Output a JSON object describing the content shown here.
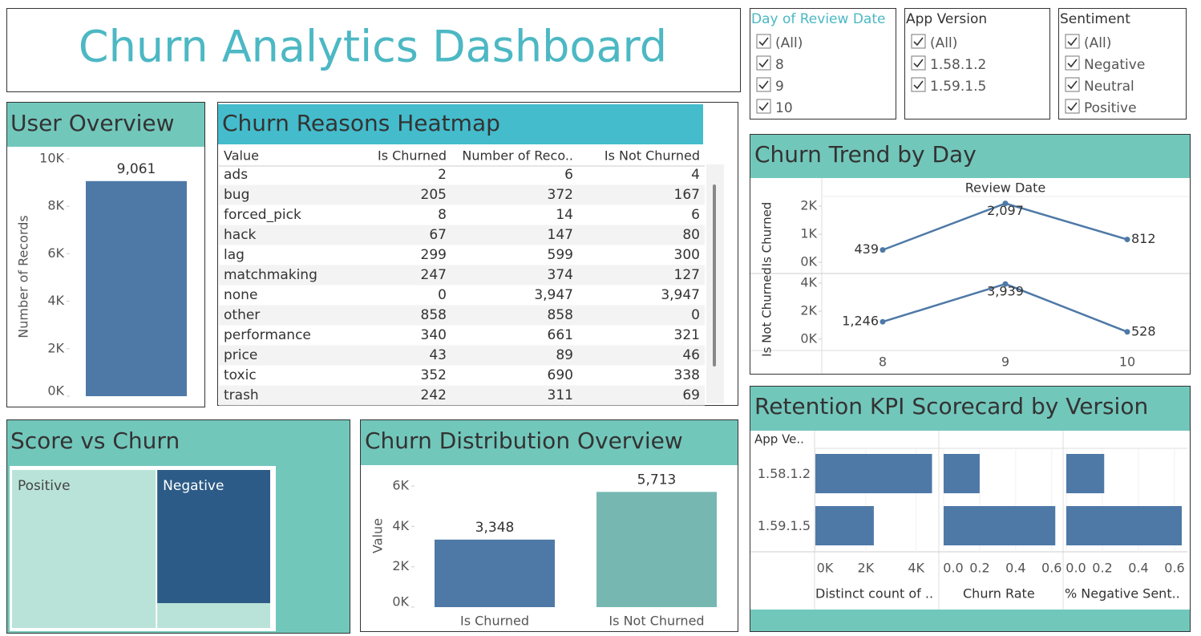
{
  "title": "Churn Analytics Dashboard",
  "filters": [
    {
      "title": "Day of Review Date",
      "options": [
        "(All)",
        "8",
        "9",
        "10"
      ]
    },
    {
      "title": "App Version",
      "options": [
        "(All)",
        "1.58.1.2",
        "1.59.1.5"
      ]
    },
    {
      "title": "Sentiment",
      "options": [
        "(All)",
        "Negative",
        "Neutral",
        "Positive"
      ]
    }
  ],
  "chart_data": [
    {
      "type": "bar",
      "title": "User Overview",
      "ylabel": "Number of Records",
      "values": [
        9061
      ],
      "value_labels": [
        "9,061"
      ],
      "colors": [
        "#4e79a7"
      ],
      "ylim": [
        0,
        10000
      ],
      "yticks": [
        {
          "value": 0,
          "label": "0K"
        },
        {
          "value": 2000,
          "label": "2K"
        },
        {
          "value": 4000,
          "label": "4K"
        },
        {
          "value": 6000,
          "label": "6K"
        },
        {
          "value": 8000,
          "label": "8K"
        },
        {
          "value": 10000,
          "label": "10K"
        }
      ]
    },
    {
      "type": "table",
      "title": "Churn Reasons Heatmap",
      "columns": [
        "Value",
        "Is Churned",
        "Number of Reco..",
        "Is Not Churned"
      ],
      "rows": [
        [
          "ads",
          "2",
          "6",
          "4"
        ],
        [
          "bug",
          "205",
          "372",
          "167"
        ],
        [
          "forced_pick",
          "8",
          "14",
          "6"
        ],
        [
          "hack",
          "67",
          "147",
          "80"
        ],
        [
          "lag",
          "299",
          "599",
          "300"
        ],
        [
          "matchmaking",
          "247",
          "374",
          "127"
        ],
        [
          "none",
          "0",
          "3,947",
          "3,947"
        ],
        [
          "other",
          "858",
          "858",
          "0"
        ],
        [
          "performance",
          "340",
          "661",
          "321"
        ],
        [
          "price",
          "43",
          "89",
          "46"
        ],
        [
          "toxic",
          "352",
          "690",
          "338"
        ],
        [
          "trash",
          "242",
          "311",
          "69"
        ]
      ]
    },
    {
      "type": "line",
      "title": "Churn Trend by Day",
      "xlabel": "Review Date",
      "categories": [
        "8",
        "9",
        "10"
      ],
      "series": [
        {
          "name": "Is Churned",
          "color": "#4e79a7",
          "values": [
            439,
            2097,
            812
          ],
          "value_labels": [
            "439",
            "2,097",
            "812"
          ],
          "ylim": [
            0,
            2300
          ],
          "yticks": [
            {
              "value": 0,
              "label": "0K"
            },
            {
              "value": 1000,
              "label": "1K"
            },
            {
              "value": 2000,
              "label": "2K"
            }
          ]
        },
        {
          "name": "Is Not Churned",
          "color": "#4e79a7",
          "values": [
            1246,
            3939,
            528
          ],
          "value_labels": [
            "1,246",
            "3,939",
            "528"
          ],
          "ylim": [
            0,
            4400
          ],
          "yticks": [
            {
              "value": 0,
              "label": "0K"
            },
            {
              "value": 2000,
              "label": "2K"
            },
            {
              "value": 4000,
              "label": "4K"
            }
          ]
        }
      ]
    },
    {
      "type": "hbar",
      "title": "Retention KPI Scorecard by Version",
      "category_label": "App Ve..",
      "categories": [
        "1.58.1.2",
        "1.59.1.5"
      ],
      "series": [
        {
          "name": "Distinct count of ..",
          "color": "#4e79a7",
          "values": [
            4630,
            2320
          ],
          "xlim": [
            0,
            4900
          ],
          "xticks": [
            {
              "value": 0,
              "label": "0K"
            },
            {
              "value": 2000,
              "label": "2K"
            },
            {
              "value": 4000,
              "label": "4K"
            }
          ]
        },
        {
          "name": "Churn Rate",
          "color": "#4e79a7",
          "values": [
            0.2,
            0.62
          ],
          "xlim": [
            0,
            0.65
          ],
          "xticks": [
            {
              "value": 0,
              "label": "0.0"
            },
            0.2,
            0.4,
            0.6
          ]
        },
        {
          "name": "% Negative Sent..",
          "color": "#4e79a7",
          "values": [
            0.21,
            0.64
          ],
          "xlim": [
            0,
            0.66
          ],
          "xticks": [
            {
              "value": 0,
              "label": "0.0"
            },
            0.2,
            0.4,
            0.6
          ]
        }
      ]
    },
    {
      "type": "treemap",
      "title": "Score vs Churn",
      "categories": [
        "Positive",
        "Negative"
      ],
      "series": [
        {
          "color": "#2d5b87",
          "values": [
            0,
            2370
          ]
        },
        {
          "color": "#b9e3d8",
          "values": [
            3564,
            440
          ]
        }
      ]
    },
    {
      "type": "bar",
      "title": "Churn Distribution Overview",
      "ylabel": "Value",
      "categories": [
        "Is Churned",
        "Is Not Churned"
      ],
      "values": [
        3348,
        5713
      ],
      "value_labels": [
        "3,348",
        "5,713"
      ],
      "colors": [
        "#4e79a7",
        "#76b7b2"
      ],
      "ylim": [
        0,
        6800
      ],
      "yticks": [
        {
          "value": 0,
          "label": "0K"
        },
        {
          "value": 2000,
          "label": "2K"
        },
        {
          "value": 4000,
          "label": "4K"
        },
        {
          "value": 6000,
          "label": "6K"
        }
      ]
    }
  ]
}
